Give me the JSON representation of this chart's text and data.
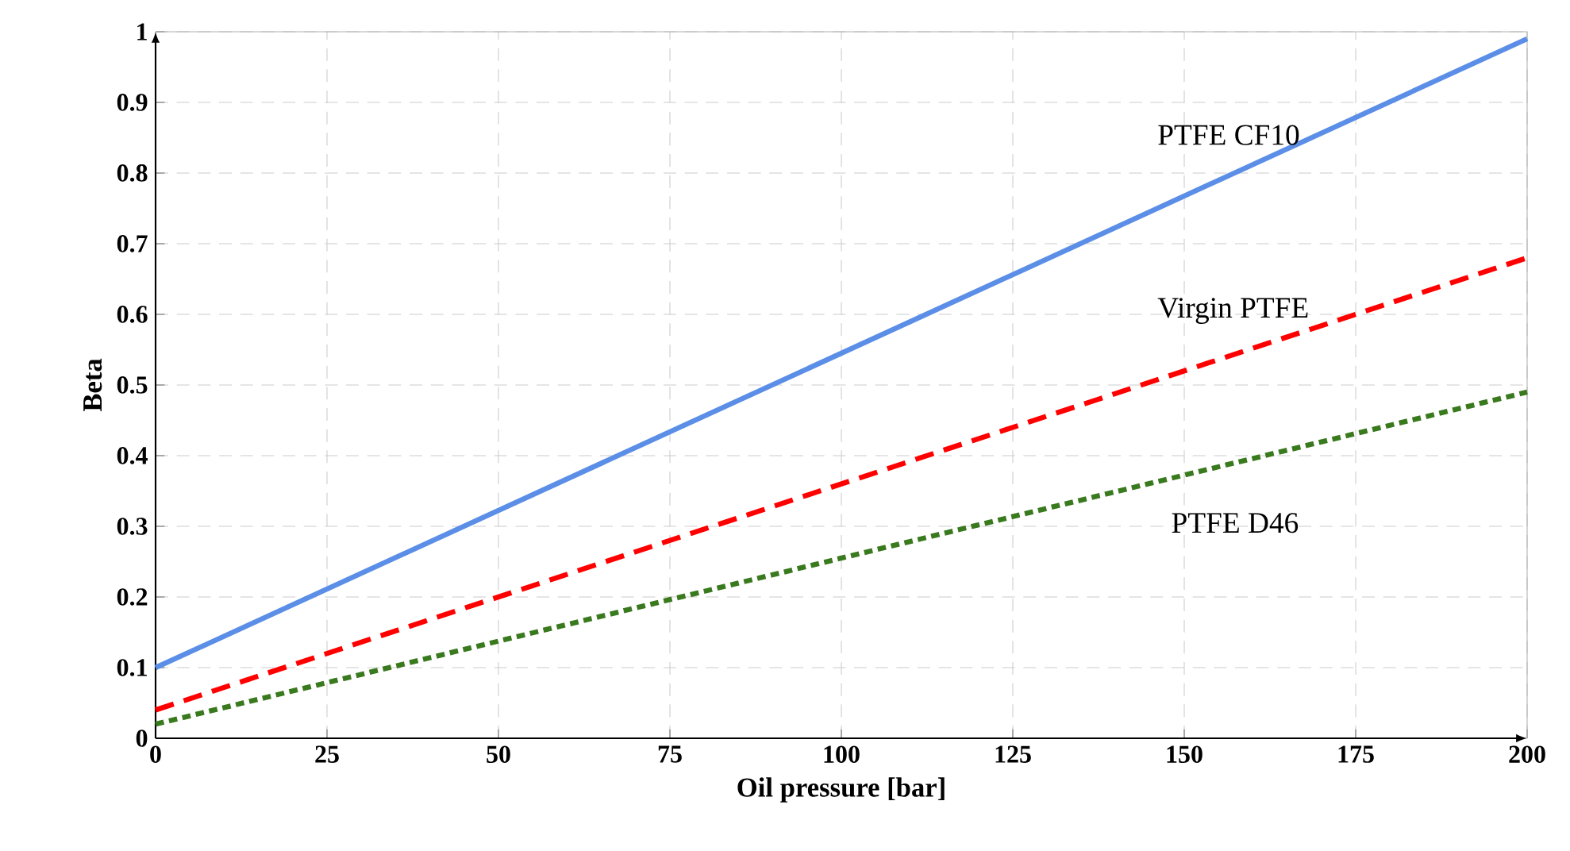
{
  "chart_data": {
    "type": "line",
    "xlabel": "Oil pressure [bar]",
    "ylabel": "Beta",
    "x": [
      0,
      200
    ],
    "series": [
      {
        "name": "PTFE CF10",
        "color": "#5b8ee6",
        "line_style": "solid",
        "values": [
          0.1,
          0.99
        ]
      },
      {
        "name": "Virgin PTFE",
        "color": "#ff0000",
        "line_style": "dashed",
        "values": [
          0.04,
          0.68
        ]
      },
      {
        "name": "PTFE D46",
        "color": "#3a7a1e",
        "line_style": "dotted",
        "values": [
          0.02,
          0.49
        ]
      }
    ],
    "xlim": [
      0,
      200
    ],
    "ylim": [
      0,
      1
    ],
    "xticks": [
      0,
      25,
      50,
      75,
      100,
      125,
      150,
      175,
      200
    ],
    "yticks": [
      0,
      0.1,
      0.2,
      0.3,
      0.4,
      0.5,
      0.6,
      0.7,
      0.8,
      0.9,
      1
    ],
    "grid": true,
    "legend": false,
    "marker": "none"
  }
}
